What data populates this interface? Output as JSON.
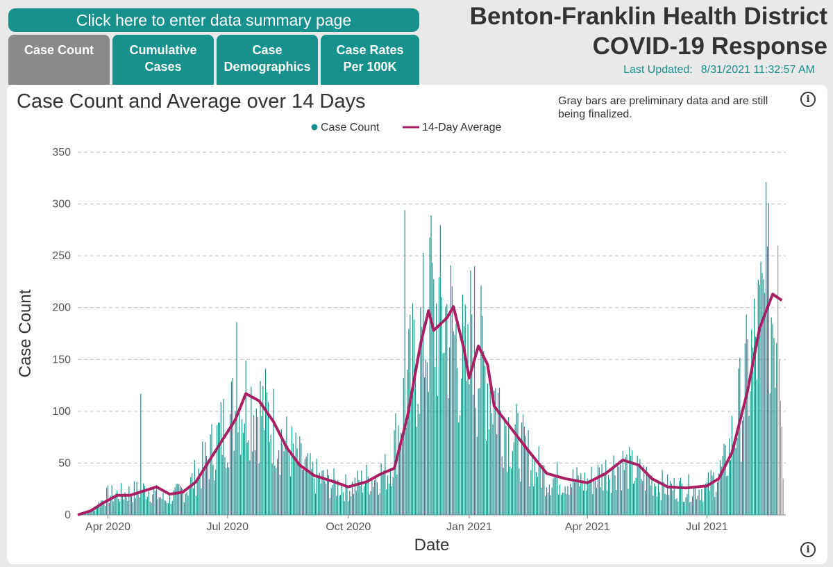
{
  "header": {
    "summary_button": "Click here to enter data summary page",
    "title_line1": "Benton-Franklin Health District",
    "title_line2": "COVID-19 Response",
    "last_updated_label": "Last Updated:",
    "last_updated_value": "8/31/2021 11:32:57 AM"
  },
  "tabs": [
    {
      "line1": "Case Count",
      "line2": ""
    },
    {
      "line1": "Cumulative",
      "line2": "Cases"
    },
    {
      "line1": "Case",
      "line2": "Demographics"
    },
    {
      "line1": "Case Rates",
      "line2": "Per 100K"
    }
  ],
  "icons": {
    "info": "info-icon"
  },
  "colors": {
    "teal": "#17918d",
    "average_line": "#a81f64",
    "preliminary": "#9a9a9a",
    "active_tab": "#8a8a8a"
  },
  "chart_data": {
    "type": "bar",
    "title": "Case Count and Average over 14 Days",
    "note": "Gray bars are preliminary data and are still being finalized.",
    "xlabel": "Date",
    "ylabel": "Case Count",
    "ylim": [
      0,
      350
    ],
    "yticks": [
      0,
      50,
      100,
      150,
      200,
      250,
      300,
      350
    ],
    "x_range": [
      "2020-03-09",
      "2021-08-30"
    ],
    "xticks": [
      {
        "date": "2020-04-01",
        "label": "Apr 2020"
      },
      {
        "date": "2020-07-01",
        "label": "Jul 2020"
      },
      {
        "date": "2020-10-01",
        "label": "Oct 2020"
      },
      {
        "date": "2021-01-01",
        "label": "Jan 2021"
      },
      {
        "date": "2021-04-01",
        "label": "Apr 2021"
      },
      {
        "date": "2021-07-01",
        "label": "Jul 2021"
      }
    ],
    "grid": true,
    "legend_position": "top-center",
    "series": [
      {
        "name": "Case Count",
        "kind": "bars",
        "color": "#17918d",
        "profile": [
          [
            "2020-03-09",
            0
          ],
          [
            "2020-03-20",
            5
          ],
          [
            "2020-04-01",
            20
          ],
          [
            "2020-04-15",
            22
          ],
          [
            "2020-05-01",
            26
          ],
          [
            "2020-05-15",
            15
          ],
          [
            "2020-06-01",
            28
          ],
          [
            "2020-06-15",
            55
          ],
          [
            "2020-07-01",
            95
          ],
          [
            "2020-07-15",
            120
          ],
          [
            "2020-08-01",
            100
          ],
          [
            "2020-08-15",
            70
          ],
          [
            "2020-09-01",
            42
          ],
          [
            "2020-09-15",
            33
          ],
          [
            "2020-10-01",
            27
          ],
          [
            "2020-10-15",
            36
          ],
          [
            "2020-11-01",
            45
          ],
          [
            "2020-11-15",
            130
          ],
          [
            "2020-12-01",
            195
          ],
          [
            "2020-12-15",
            200
          ],
          [
            "2020-12-31",
            140
          ],
          [
            "2021-01-10",
            155
          ],
          [
            "2021-02-01",
            85
          ],
          [
            "2021-02-15",
            60
          ],
          [
            "2021-03-01",
            38
          ],
          [
            "2021-04-01",
            33
          ],
          [
            "2021-04-25",
            52
          ],
          [
            "2021-05-15",
            38
          ],
          [
            "2021-06-01",
            28
          ],
          [
            "2021-06-30",
            26
          ],
          [
            "2021-07-15",
            50
          ],
          [
            "2021-08-01",
            140
          ],
          [
            "2021-08-15",
            210
          ],
          [
            "2021-08-30",
            200
          ]
        ],
        "peaks": [
          [
            "2020-04-26",
            117
          ],
          [
            "2020-07-08",
            186
          ],
          [
            "2020-11-13",
            294
          ],
          [
            "2020-12-03",
            289
          ],
          [
            "2021-01-02",
            236
          ],
          [
            "2021-01-05",
            240
          ],
          [
            "2021-08-15",
            321
          ]
        ]
      },
      {
        "name": "14-Day Average",
        "kind": "line",
        "color": "#a81f64",
        "points": [
          [
            "2020-03-09",
            0
          ],
          [
            "2020-03-19",
            4
          ],
          [
            "2020-03-29",
            12
          ],
          [
            "2020-04-08",
            19
          ],
          [
            "2020-04-18",
            19
          ],
          [
            "2020-04-28",
            23
          ],
          [
            "2020-05-08",
            27
          ],
          [
            "2020-05-18",
            20
          ],
          [
            "2020-05-28",
            22
          ],
          [
            "2020-06-07",
            32
          ],
          [
            "2020-06-17",
            52
          ],
          [
            "2020-06-27",
            72
          ],
          [
            "2020-07-07",
            92
          ],
          [
            "2020-07-15",
            117
          ],
          [
            "2020-07-25",
            110
          ],
          [
            "2020-08-05",
            90
          ],
          [
            "2020-08-15",
            65
          ],
          [
            "2020-08-25",
            48
          ],
          [
            "2020-09-05",
            38
          ],
          [
            "2020-09-20",
            32
          ],
          [
            "2020-10-01",
            27
          ],
          [
            "2020-10-15",
            32
          ],
          [
            "2020-10-25",
            39
          ],
          [
            "2020-11-05",
            45
          ],
          [
            "2020-11-15",
            95
          ],
          [
            "2020-11-25",
            165
          ],
          [
            "2020-12-01",
            197
          ],
          [
            "2020-12-05",
            178
          ],
          [
            "2020-12-15",
            190
          ],
          [
            "2020-12-20",
            201
          ],
          [
            "2020-12-28",
            160
          ],
          [
            "2021-01-01",
            132
          ],
          [
            "2021-01-08",
            163
          ],
          [
            "2021-01-15",
            145
          ],
          [
            "2021-01-20",
            105
          ],
          [
            "2021-02-01",
            85
          ],
          [
            "2021-02-15",
            62
          ],
          [
            "2021-03-01",
            40
          ],
          [
            "2021-03-15",
            35
          ],
          [
            "2021-04-01",
            31
          ],
          [
            "2021-04-15",
            40
          ],
          [
            "2021-04-28",
            53
          ],
          [
            "2021-05-10",
            48
          ],
          [
            "2021-05-20",
            35
          ],
          [
            "2021-06-01",
            27
          ],
          [
            "2021-06-15",
            26
          ],
          [
            "2021-07-01",
            28
          ],
          [
            "2021-07-10",
            35
          ],
          [
            "2021-07-20",
            60
          ],
          [
            "2021-08-01",
            120
          ],
          [
            "2021-08-10",
            180
          ],
          [
            "2021-08-20",
            213
          ],
          [
            "2021-08-27",
            207
          ]
        ]
      },
      {
        "name": "",
        "kind": "preliminary-bars",
        "color": "#9a9a9a",
        "values": [
          [
            "2021-08-24",
            260
          ],
          [
            "2021-08-25",
            150
          ],
          [
            "2021-08-26",
            110
          ],
          [
            "2021-08-27",
            85
          ],
          [
            "2021-08-28",
            35
          ]
        ]
      }
    ]
  }
}
